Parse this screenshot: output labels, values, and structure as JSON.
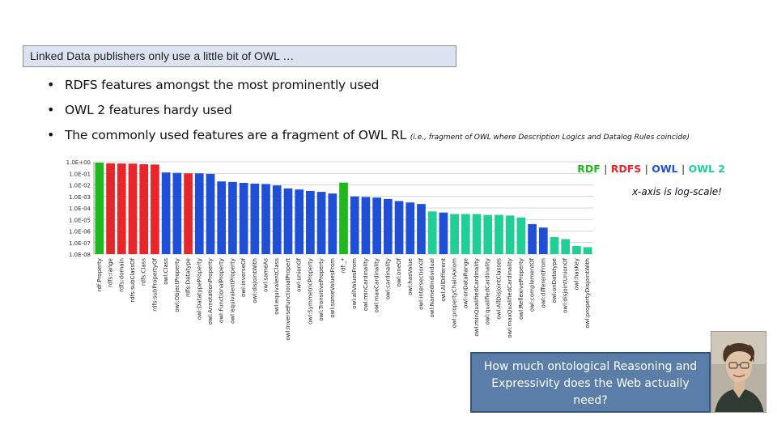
{
  "slide": {
    "title": "Linked Data publishers only use a little bit of OWL …",
    "bullets": [
      {
        "text": "RDFS features amongst the most prominently used",
        "note": ""
      },
      {
        "text": "OWL 2 features hardy used",
        "note": ""
      },
      {
        "text": "The commonly used features are a fragment of OWL RL",
        "note": "(i.e., fragment of OWL where Description Logics and Datalog Rules coincide)"
      }
    ],
    "legend": [
      {
        "label": "RDF",
        "color": "#1fb81f"
      },
      {
        "label": "RDFS",
        "color": "#e8252a"
      },
      {
        "label": "OWL",
        "color": "#1f4fd6"
      },
      {
        "label": "OWL 2",
        "color": "#1fcf96"
      }
    ],
    "legend_separator": "|",
    "axis_note": "x-axis is log-scale!",
    "question": "How much ontological Reasoning and Expressivity does the Web actually need?",
    "colors": {
      "title_box_bg": "#dbe3f1",
      "question_bg": "#5b7ea9"
    },
    "icons": {
      "photo": "portrait-photo"
    }
  },
  "chart_data": {
    "type": "bar",
    "scale": "log",
    "grid": true,
    "ylim": [
      1e-08,
      1
    ],
    "ytick_labels": [
      "1.0E+00",
      "1.0E-01",
      "1.0E-02",
      "1.0E-03",
      "1.0E-04",
      "1.0E-05",
      "1.0E-06",
      "1.0E-07",
      "1.0E-08"
    ],
    "palette": {
      "RDF": "#1fb81f",
      "RDFS": "#e8252a",
      "OWL": "#1f4fd6",
      "OWL2": "#1fcf96"
    },
    "bars": [
      {
        "label": "rdf:Property",
        "value": 0.85,
        "group": "RDF"
      },
      {
        "label": "rdfs:range",
        "value": 0.75,
        "group": "RDFS"
      },
      {
        "label": "rdfs:domain",
        "value": 0.72,
        "group": "RDFS"
      },
      {
        "label": "rdfs:subClassOf",
        "value": 0.7,
        "group": "RDFS"
      },
      {
        "label": "rdfs:Class",
        "value": 0.62,
        "group": "RDFS"
      },
      {
        "label": "rdfs:subPropertyOf",
        "value": 0.58,
        "group": "RDFS"
      },
      {
        "label": "owl:Class",
        "value": 0.12,
        "group": "OWL"
      },
      {
        "label": "owl:ObjectProperty",
        "value": 0.11,
        "group": "OWL"
      },
      {
        "label": "rdfs:Datatype",
        "value": 0.1,
        "group": "RDFS"
      },
      {
        "label": "owl:DatatypeProperty",
        "value": 0.1,
        "group": "OWL"
      },
      {
        "label": "owl:AnnotationProperty",
        "value": 0.09,
        "group": "OWL"
      },
      {
        "label": "owl:FunctionalProperty",
        "value": 0.02,
        "group": "OWL"
      },
      {
        "label": "owl:equivalentProperty",
        "value": 0.018,
        "group": "OWL"
      },
      {
        "label": "owl:inverseOf",
        "value": 0.015,
        "group": "OWL"
      },
      {
        "label": "owl:disjointWith",
        "value": 0.013,
        "group": "OWL"
      },
      {
        "label": "owl:sameAs",
        "value": 0.012,
        "group": "OWL"
      },
      {
        "label": "owl:equivalentClass",
        "value": 0.009,
        "group": "OWL"
      },
      {
        "label": "owl:InverseFunctionalPropert",
        "value": 0.005,
        "group": "OWL"
      },
      {
        "label": "owl:unionOf",
        "value": 0.004,
        "group": "OWL"
      },
      {
        "label": "owl:SymmetricProperty",
        "value": 0.003,
        "group": "OWL"
      },
      {
        "label": "owl:TransitiveProperty",
        "value": 0.0025,
        "group": "OWL"
      },
      {
        "label": "owl:someValuesFrom",
        "value": 0.0018,
        "group": "OWL"
      },
      {
        "label": "rdf:_*",
        "value": 0.016,
        "group": "RDF"
      },
      {
        "label": "owl:allValuesFrom",
        "value": 0.001,
        "group": "OWL"
      },
      {
        "label": "owl:minCardinality",
        "value": 0.0009,
        "group": "OWL"
      },
      {
        "label": "owl:maxCardinality",
        "value": 0.0008,
        "group": "OWL"
      },
      {
        "label": "owl:cardinality",
        "value": 0.0006,
        "group": "OWL"
      },
      {
        "label": "owl:oneOf",
        "value": 0.0004,
        "group": "OWL"
      },
      {
        "label": "owl:hasValue",
        "value": 0.0003,
        "group": "OWL"
      },
      {
        "label": "owl:intersectionOf",
        "value": 0.00022,
        "group": "OWL"
      },
      {
        "label": "owl:NamedIndividual",
        "value": 5e-05,
        "group": "OWL2"
      },
      {
        "label": "owl:AllDifferent",
        "value": 4e-05,
        "group": "OWL"
      },
      {
        "label": "owl:propertyChainAxiom",
        "value": 3e-05,
        "group": "OWL2"
      },
      {
        "label": "owl:onDataRange",
        "value": 3e-05,
        "group": "OWL2"
      },
      {
        "label": "owl:minQualifiedCardinality",
        "value": 3e-05,
        "group": "OWL2"
      },
      {
        "label": "owl:qualifiedCardinality",
        "value": 2.5e-05,
        "group": "OWL2"
      },
      {
        "label": "owl:AllDisjointClasses",
        "value": 2.5e-05,
        "group": "OWL2"
      },
      {
        "label": "owl:maxQualifiedCardinality",
        "value": 2.2e-05,
        "group": "OWL2"
      },
      {
        "label": "owl:ReflexiveProperty",
        "value": 1.5e-05,
        "group": "OWL2"
      },
      {
        "label": "owl:complementOf",
        "value": 4e-06,
        "group": "OWL"
      },
      {
        "label": "owl:differentFrom",
        "value": 2e-06,
        "group": "OWL"
      },
      {
        "label": "owl:onDatatype",
        "value": 3e-07,
        "group": "OWL2"
      },
      {
        "label": "owl:disjointUnionOf",
        "value": 2e-07,
        "group": "OWL2"
      },
      {
        "label": "owl:hasKey",
        "value": 5e-08,
        "group": "OWL2"
      },
      {
        "label": "owl:propertyDisjointWith",
        "value": 4e-08,
        "group": "OWL2"
      }
    ]
  }
}
